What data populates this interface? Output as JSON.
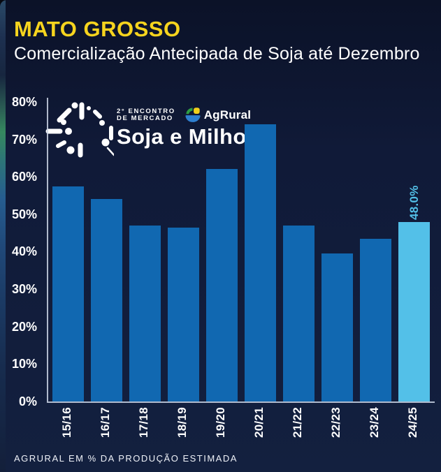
{
  "header": {
    "title": "MATO GROSSO",
    "subtitle": "Comercialização Antecipada de Soja até Dezembro"
  },
  "logo": {
    "event_line1": "2° ENCONTRO",
    "event_line2": "DE MERCADO",
    "brand": "AgRural",
    "event_title": "Soja e Milho"
  },
  "colors": {
    "background": "#101a38",
    "bar": "#1168b1",
    "bar_highlight": "#53c0e8",
    "title": "#f6d41e",
    "text": "#ffffff",
    "axis": "#cdd6e6"
  },
  "chart_data": {
    "type": "bar",
    "title": "Comercialização Antecipada de Soja até Dezembro",
    "categories": [
      "15/16",
      "16/17",
      "17/18",
      "18/19",
      "19/20",
      "20/21",
      "21/22",
      "22/23",
      "23/24",
      "24/25"
    ],
    "values": [
      57.5,
      54,
      47,
      46.5,
      62,
      74,
      47,
      39.5,
      43.5,
      48
    ],
    "highlight_index": 9,
    "highlight_label": "48.0%",
    "y_ticks": [
      "0%",
      "10%",
      "20%",
      "30%",
      "40%",
      "50%",
      "60%",
      "70%",
      "80%"
    ],
    "ylim": [
      0,
      80
    ],
    "xlabel_rotation": -90,
    "grid": false,
    "legend": "none",
    "unit": "% da produção estimada"
  },
  "footer": {
    "source": "AGRURAL  EM % DA PRODUÇÃO ESTIMADA"
  }
}
